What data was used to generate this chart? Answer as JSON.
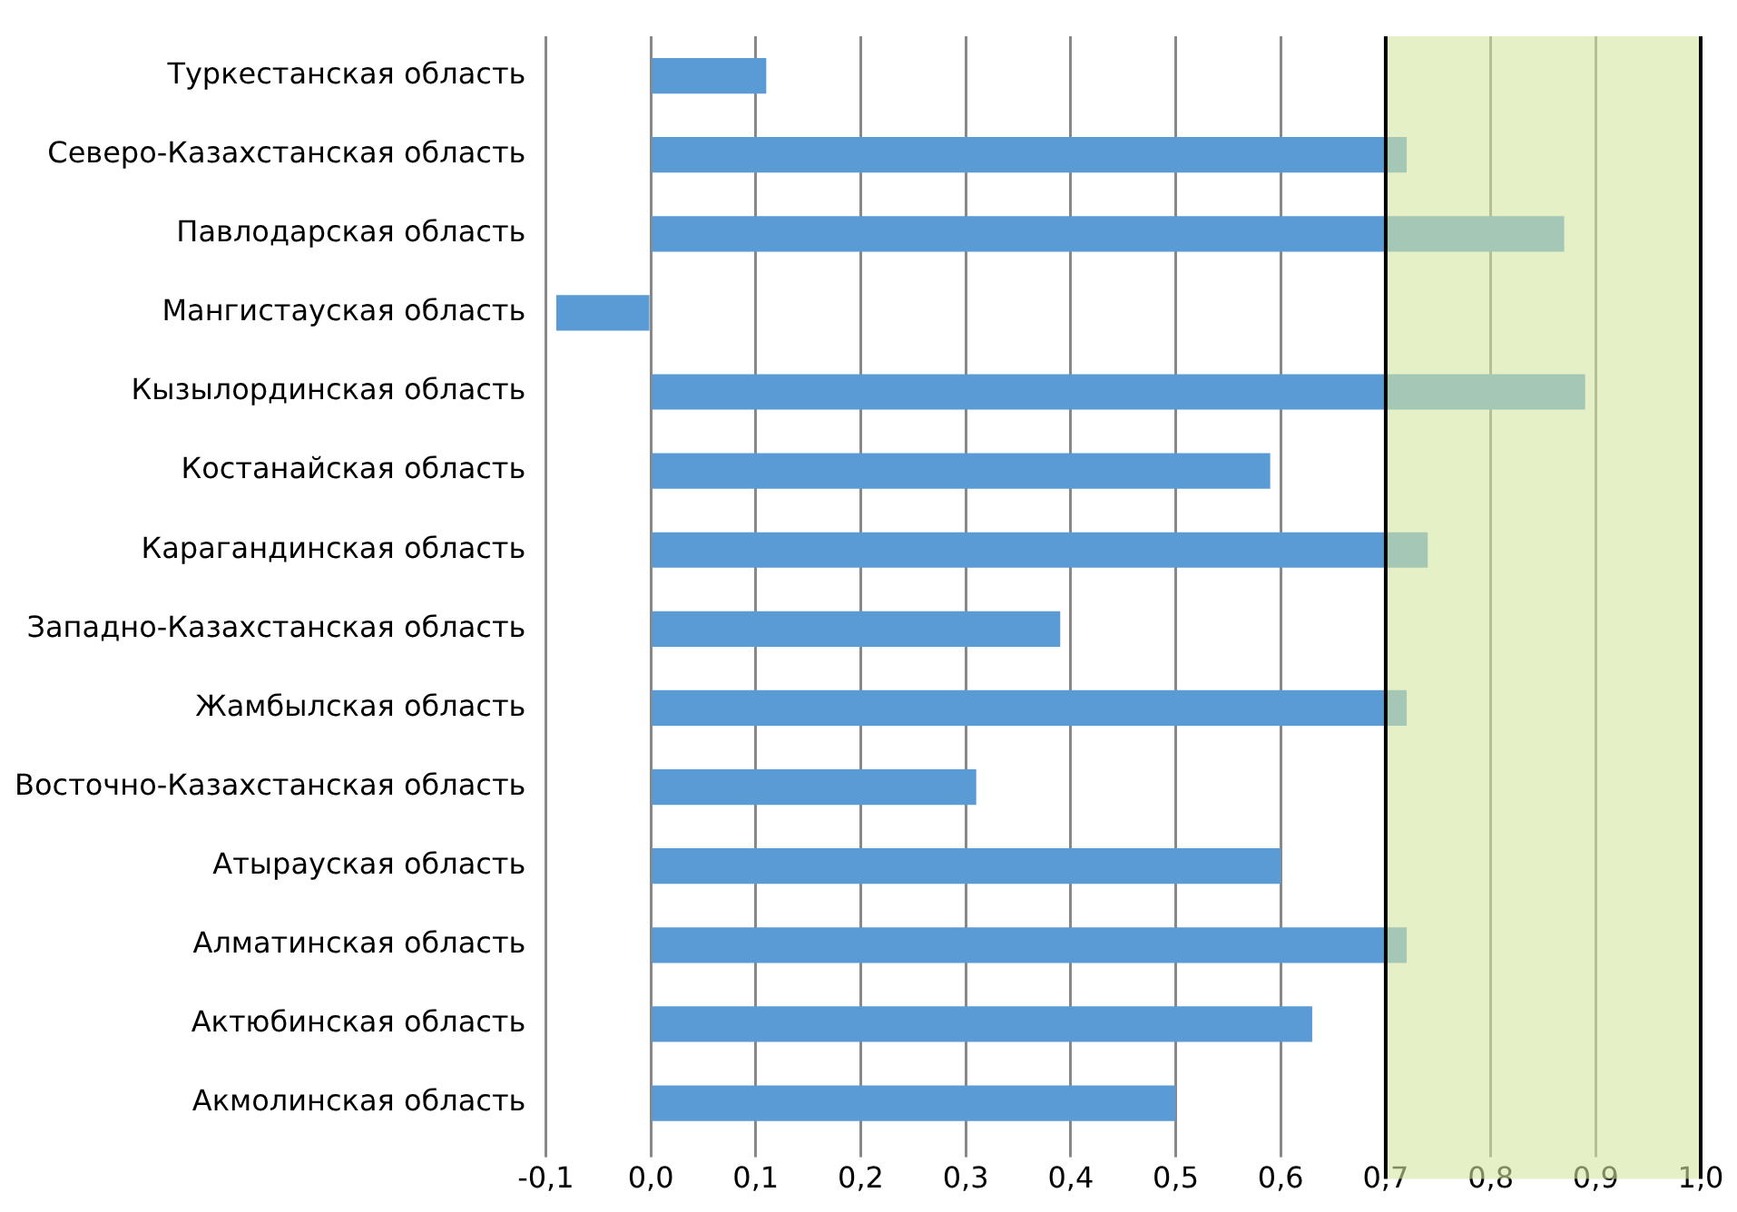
{
  "chart_data": {
    "type": "bar",
    "orientation": "horizontal",
    "categories": [
      "Туркестанская область",
      "Северо-Казахстанская область",
      "Павлодарская область",
      "Мангистауская область",
      "Кызылординская область",
      "Костанайская область",
      "Карагандинская область",
      "Западно-Казахстанская область",
      "Жамбылская область",
      "Восточно-Казахстанская область",
      "Атырауская область",
      "Алматинская область",
      "Актюбинская область",
      "Акмолинская область"
    ],
    "values": [
      0.11,
      0.72,
      0.87,
      -0.09,
      0.89,
      0.59,
      0.74,
      0.39,
      0.72,
      0.31,
      0.6,
      0.72,
      0.63,
      0.5
    ],
    "color": "#5b9bd5",
    "xlim": [
      -0.1,
      1.0
    ],
    "xticks": [
      {
        "value": -0.1,
        "label": "-0,1"
      },
      {
        "value": 0,
        "label": "0,0"
      },
      {
        "value": 0.1,
        "label": "0,1"
      },
      {
        "value": 0.2,
        "label": "0,2"
      },
      {
        "value": 0.3,
        "label": "0,3"
      },
      {
        "value": 0.4,
        "label": "0,4"
      },
      {
        "value": 0.5,
        "label": "0,5"
      },
      {
        "value": 0.6,
        "label": "0,6"
      },
      {
        "value": 0.7,
        "label": "0,7"
      },
      {
        "value": 0.8,
        "label": "0,8"
      },
      {
        "value": 0.9,
        "label": "0,9"
      },
      {
        "value": 1.0,
        "label": "1,0"
      }
    ],
    "bands": [
      {
        "axis": "x",
        "from": 0.7,
        "to": 1.0,
        "color": "#d6e6a0"
      }
    ],
    "ref_lines": [
      {
        "axis": "x",
        "value": 0.7,
        "color": "#000000"
      },
      {
        "axis": "x",
        "value": 1.0,
        "color": "#000000"
      }
    ],
    "grid": "x",
    "legend": false
  }
}
